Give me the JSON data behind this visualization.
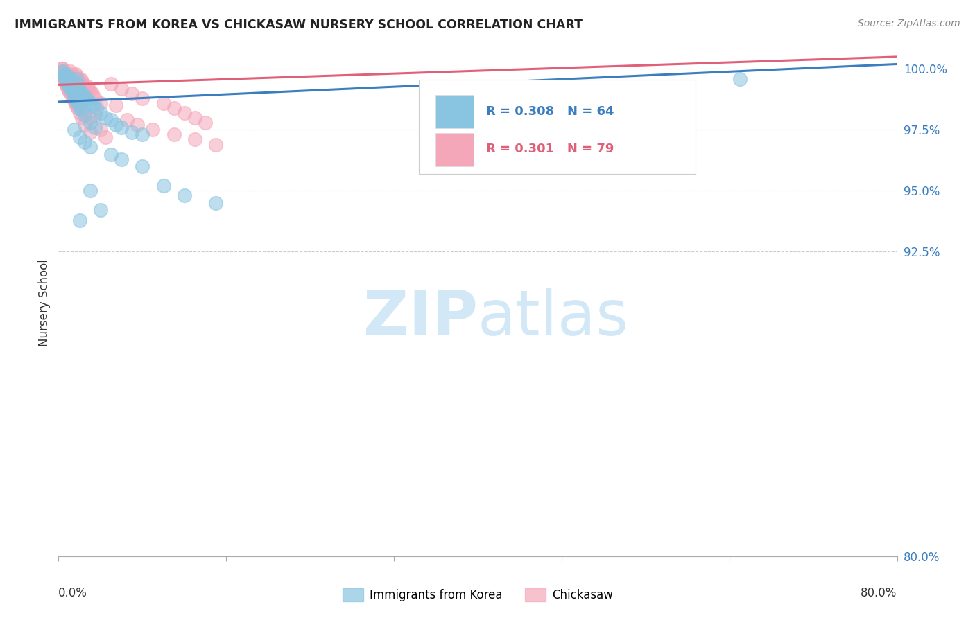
{
  "title": "IMMIGRANTS FROM KOREA VS CHICKASAW NURSERY SCHOOL CORRELATION CHART",
  "source": "Source: ZipAtlas.com",
  "ylabel": "Nursery School",
  "ytick_values": [
    80.0,
    92.5,
    95.0,
    97.5,
    100.0
  ],
  "xlim": [
    0.0,
    80.0
  ],
  "ylim": [
    80.0,
    100.8
  ],
  "legend_blue_text": "R = 0.308   N = 64",
  "legend_pink_text": "R = 0.301   N = 79",
  "legend_blue_label": "Immigrants from Korea",
  "legend_pink_label": "Chickasaw",
  "blue_color": "#89c4e1",
  "pink_color": "#f4a7b9",
  "blue_line_color": "#3a7ebf",
  "pink_line_color": "#e0607a",
  "blue_scatter_x": [
    0.5,
    0.6,
    0.7,
    0.8,
    0.9,
    1.0,
    1.1,
    1.2,
    1.3,
    1.4,
    1.5,
    1.6,
    1.7,
    1.8,
    1.9,
    2.0,
    2.2,
    2.4,
    2.6,
    2.8,
    3.0,
    3.3,
    3.6,
    4.0,
    4.5,
    5.0,
    5.5,
    6.0,
    7.0,
    8.0,
    0.4,
    0.5,
    0.6,
    0.7,
    0.8,
    0.9,
    1.0,
    1.1,
    1.2,
    1.3,
    1.4,
    1.5,
    1.6,
    1.7,
    1.8,
    2.0,
    2.2,
    2.5,
    3.0,
    3.5,
    1.5,
    2.0,
    2.5,
    3.0,
    5.0,
    6.0,
    8.0,
    10.0,
    12.0,
    15.0,
    2.0,
    3.0,
    4.0,
    65.0
  ],
  "blue_scatter_y": [
    99.7,
    99.8,
    99.6,
    99.5,
    99.7,
    99.4,
    99.6,
    99.3,
    99.5,
    99.4,
    99.2,
    99.3,
    99.6,
    99.4,
    99.2,
    99.1,
    99.0,
    98.9,
    98.8,
    98.7,
    98.6,
    98.5,
    98.4,
    98.2,
    98.0,
    97.9,
    97.7,
    97.6,
    97.4,
    97.3,
    99.9,
    99.8,
    99.7,
    99.6,
    99.5,
    99.4,
    99.3,
    99.5,
    99.2,
    99.1,
    99.0,
    98.9,
    98.8,
    98.7,
    98.6,
    98.4,
    98.3,
    98.1,
    97.8,
    97.6,
    97.5,
    97.2,
    97.0,
    96.8,
    96.5,
    96.3,
    96.0,
    95.2,
    94.8,
    94.5,
    93.8,
    95.0,
    94.2,
    99.6
  ],
  "pink_scatter_x": [
    0.3,
    0.4,
    0.5,
    0.6,
    0.7,
    0.8,
    0.9,
    1.0,
    1.1,
    1.2,
    1.3,
    1.4,
    1.5,
    1.6,
    1.7,
    1.8,
    1.9,
    2.0,
    2.1,
    2.2,
    2.3,
    2.4,
    2.5,
    2.6,
    2.7,
    2.8,
    3.0,
    3.2,
    3.5,
    4.0,
    0.3,
    0.4,
    0.5,
    0.6,
    0.7,
    0.8,
    0.9,
    1.0,
    1.1,
    1.2,
    1.3,
    1.4,
    1.5,
    1.6,
    1.7,
    1.8,
    2.0,
    2.2,
    2.5,
    3.0,
    0.5,
    0.6,
    0.7,
    0.8,
    0.9,
    1.0,
    1.5,
    2.0,
    3.0,
    4.0,
    5.0,
    6.0,
    7.0,
    8.0,
    10.0,
    11.0,
    12.0,
    13.0,
    14.0,
    4.5,
    5.5,
    2.5,
    3.5,
    6.5,
    7.5,
    9.0,
    11.0,
    13.0,
    15.0
  ],
  "pink_scatter_y": [
    100.0,
    100.0,
    99.9,
    99.9,
    99.8,
    99.8,
    99.7,
    99.7,
    99.9,
    99.8,
    99.7,
    99.6,
    99.5,
    99.8,
    99.7,
    99.6,
    99.5,
    99.4,
    99.6,
    99.5,
    99.4,
    99.3,
    99.2,
    99.1,
    99.3,
    99.2,
    99.1,
    99.0,
    98.8,
    98.6,
    99.9,
    99.8,
    99.7,
    99.6,
    99.5,
    99.4,
    99.3,
    99.2,
    99.1,
    99.0,
    98.9,
    98.8,
    98.7,
    98.6,
    98.5,
    98.4,
    98.2,
    98.0,
    97.7,
    97.4,
    99.6,
    99.5,
    99.4,
    99.3,
    99.2,
    99.1,
    98.8,
    98.5,
    98.0,
    97.5,
    99.4,
    99.2,
    99.0,
    98.8,
    98.6,
    98.4,
    98.2,
    98.0,
    97.8,
    97.2,
    98.5,
    98.3,
    98.1,
    97.9,
    97.7,
    97.5,
    97.3,
    97.1,
    96.9
  ],
  "blue_trendline_x": [
    0.0,
    80.0
  ],
  "blue_trendline_y": [
    98.65,
    100.2
  ],
  "pink_trendline_x": [
    0.0,
    80.0
  ],
  "pink_trendline_y": [
    99.35,
    100.5
  ]
}
